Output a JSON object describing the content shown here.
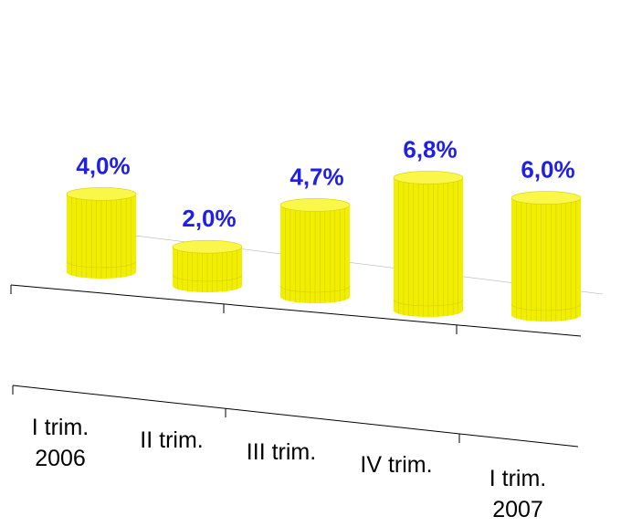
{
  "chart_data": {
    "type": "bar",
    "style": "3d-cylinder",
    "categories": [
      [
        "I trim.",
        "2006"
      ],
      [
        "II trim."
      ],
      [
        "III trim."
      ],
      [
        "IV trim."
      ],
      [
        "I trim.",
        "2007"
      ]
    ],
    "values": [
      4.0,
      2.0,
      4.7,
      6.8,
      6.0
    ],
    "data_labels": [
      "4,0%",
      "2,0%",
      "4,7%",
      "6,8%",
      "6,0%"
    ],
    "title": "",
    "xlabel": "",
    "ylabel": "",
    "grid": false,
    "legend": "none",
    "colors": {
      "bar_side": "#f2ee00",
      "bar_top": "#fbf64a",
      "bar_lines": "#d6d000",
      "label": "#1f1fe6",
      "axis": "#000000"
    }
  }
}
